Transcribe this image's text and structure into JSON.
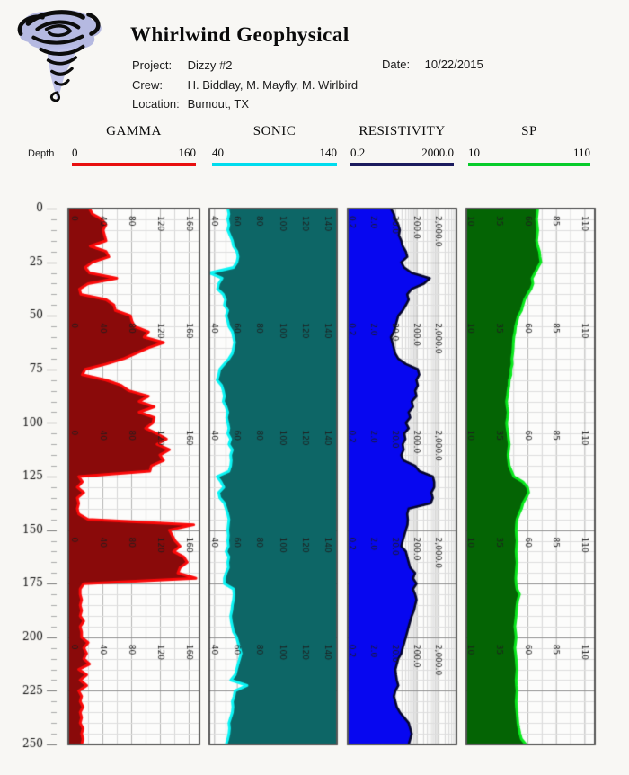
{
  "header": {
    "company": "Whirlwind Geophysical",
    "project_label": "Project:",
    "project": "Dizzy #2",
    "date_label": "Date:",
    "date": "10/22/2015",
    "crew_label": "Crew:",
    "crew": "H. Biddlay, M. Mayfly, M. Wirlbird",
    "location_label": "Location:",
    "location": "Bumout, TX",
    "depth_label": "Depth"
  },
  "chart_data": {
    "type": "area",
    "title": "Well log display with four tracks versus depth",
    "depth_axis": {
      "label": "Depth",
      "min": 0,
      "max": 250,
      "tick_major": 25,
      "tick_minor": 5,
      "tick_labels": [
        0,
        25,
        50,
        75,
        100,
        125,
        150,
        175,
        200,
        225,
        250
      ]
    },
    "depth_start": 0,
    "depth_step": 2.5,
    "tracks": [
      {
        "name": "GAMMA",
        "scale": "linear",
        "min": 0,
        "max": 160,
        "header_min": "0",
        "header_max": "160",
        "header_bar_color": "#e80f0f",
        "line_color": "#fb0a0a",
        "fill_color": "#8a0a0a",
        "fill_side": "left",
        "tick_values": [
          0,
          40,
          80,
          120,
          160
        ],
        "tick_labels": [
          "0",
          "40",
          "80",
          "120",
          "160"
        ],
        "minor_step": 20,
        "values": [
          22,
          26,
          39,
          45,
          41,
          43,
          45,
          23,
          45,
          49,
          26,
          16,
          22,
          60,
          20,
          8,
          10,
          45,
          56,
          58,
          79,
          81,
          85,
          104,
          98,
          125,
          104,
          87,
          70,
          45,
          16,
          12,
          45,
          66,
          77,
          104,
          91,
          112,
          91,
          112,
          110,
          100,
          116,
          129,
          116,
          133,
          120,
          125,
          108,
          106,
          7,
          12,
          5,
          14,
          5,
          7,
          5,
          7,
          20,
          167,
          133,
          137,
          141,
          148,
          139,
          153,
          158,
          148,
          145,
          170,
          14,
          9,
          9,
          11,
          9,
          11,
          9,
          14,
          9,
          11,
          11,
          20,
          14,
          18,
          14,
          22,
          7,
          18,
          9,
          18,
          7,
          11,
          9,
          13,
          9,
          11,
          9,
          13,
          11,
          13,
          11
        ]
      },
      {
        "name": "SONIC",
        "scale": "linear",
        "min": 40,
        "max": 140,
        "header_min": "40",
        "header_max": "140",
        "header_bar_color": "#00dcee",
        "line_color": "#0cf4f4",
        "fill_color": "#0d6666",
        "fill_side": "right",
        "tick_values": [
          40,
          60,
          80,
          100,
          120,
          140
        ],
        "tick_labels": [
          "40",
          "60",
          "80",
          "100",
          "120",
          "140"
        ],
        "minor_step": 10,
        "values": [
          52,
          53,
          52,
          53,
          52,
          54,
          56,
          57,
          60,
          61,
          60,
          57,
          36,
          47,
          44,
          43,
          48,
          50,
          49,
          52,
          50.5,
          52,
          53,
          56,
          57,
          58,
          57,
          56,
          53,
          49,
          45,
          44,
          42.6,
          46.6,
          48,
          49,
          48,
          50.5,
          52,
          51,
          52,
          53,
          52,
          54.5,
          53,
          56,
          54.5,
          55,
          54.5,
          53,
          42.6,
          46,
          48.5,
          44,
          45,
          49,
          50.5,
          52,
          53,
          52.5,
          52,
          52.5,
          52,
          52.5,
          50.5,
          53,
          52,
          52.5,
          50.5,
          49,
          49,
          57,
          57.5,
          57,
          56,
          55.5,
          54.5,
          55,
          56,
          57,
          59.7,
          61,
          62.4,
          63.7,
          62.4,
          61,
          59.7,
          58.5,
          54.7,
          68.9,
          58.4,
          57.5,
          56,
          56.5,
          56,
          54.5,
          53,
          53.5,
          53,
          52,
          50.5
        ]
      },
      {
        "name": "RESISTIVITY",
        "scale": "log",
        "min": 0.2,
        "max": 2000,
        "header_min": "0.2",
        "header_max": "2000.0",
        "header_bar_color": "#1b1b5e",
        "line_color": "#06062e",
        "fill_color": "#0707f0",
        "fill_side": "left",
        "tick_values": [
          0.2,
          2,
          20,
          200,
          2000
        ],
        "tick_labels": [
          "0.2",
          "2.0",
          "20.0",
          "200.0",
          "2,000.0"
        ],
        "values": [
          12.8,
          17.5,
          20.6,
          28,
          33,
          30,
          38.7,
          45,
          63,
          73,
          38.7,
          53,
          118,
          815,
          430,
          118,
          73,
          85,
          63,
          45,
          28,
          24,
          20.6,
          17.5,
          12.8,
          15,
          17.5,
          20,
          28,
          63,
          226,
          265,
          196,
          226,
          170,
          196,
          118,
          136,
          85,
          100,
          63,
          85,
          53,
          60,
          45,
          50,
          38.7,
          50,
          170,
          265,
          1124,
          1300,
          1300,
          960,
          1120,
          900,
          85,
          73,
          78,
          75,
          63,
          53,
          45,
          38.7,
          63,
          73,
          85,
          100,
          170,
          136,
          196,
          136,
          170,
          196,
          170,
          150,
          118,
          100,
          85,
          73,
          63,
          53,
          45,
          39,
          28,
          24,
          20.6,
          22,
          24,
          28,
          20.6,
          17.5,
          20.6,
          24,
          33,
          53,
          85,
          100,
          118,
          100,
          85
        ]
      },
      {
        "name": "SP",
        "scale": "linear",
        "min": 10,
        "max": 110,
        "header_min": "10",
        "header_max": "110",
        "header_bar_color": "#07cc2a",
        "line_color": "#0be81e",
        "fill_color": "#046404",
        "fill_side": "left",
        "tick_values": [
          10,
          35,
          60,
          85,
          110
        ],
        "tick_labels": [
          "10",
          "35",
          "60",
          "85",
          "110"
        ],
        "minor_step": 12.5,
        "values": [
          69,
          68.5,
          68,
          68.5,
          69,
          68.5,
          68,
          69,
          70.5,
          71,
          71.8,
          69,
          66.6,
          64,
          64.7,
          63,
          60,
          57.4,
          56,
          54.7,
          52,
          50.8,
          49.5,
          49,
          48,
          47.6,
          47.4,
          47,
          46.3,
          46.6,
          45.5,
          45.5,
          44,
          43.7,
          42.9,
          42.4,
          41.6,
          42.1,
          42.9,
          42.4,
          41.6,
          42.1,
          42.9,
          43.4,
          44,
          43.4,
          42.9,
          43.4,
          44,
          46,
          48,
          56,
          60,
          61,
          58.7,
          56,
          54.7,
          52.6,
          50.8,
          50.3,
          50,
          50.3,
          50.8,
          50.4,
          50,
          50.3,
          50.8,
          50.4,
          50,
          49.7,
          50,
          50.8,
          53,
          51.6,
          50.8,
          50.3,
          50,
          49.5,
          48.9,
          49.5,
          50,
          49.5,
          48.9,
          49.5,
          50,
          50.4,
          50.8,
          50.4,
          50,
          50.3,
          50.8,
          50.4,
          50,
          50.3,
          50.8,
          51.2,
          51.6,
          52.4,
          53.4,
          54.7,
          58.7
        ]
      }
    ],
    "layout_hints": {
      "grid": true,
      "tick_label_sections_at_depths": [
        0,
        50,
        100,
        150,
        200
      ],
      "legend_position": "top-header-bars"
    }
  }
}
